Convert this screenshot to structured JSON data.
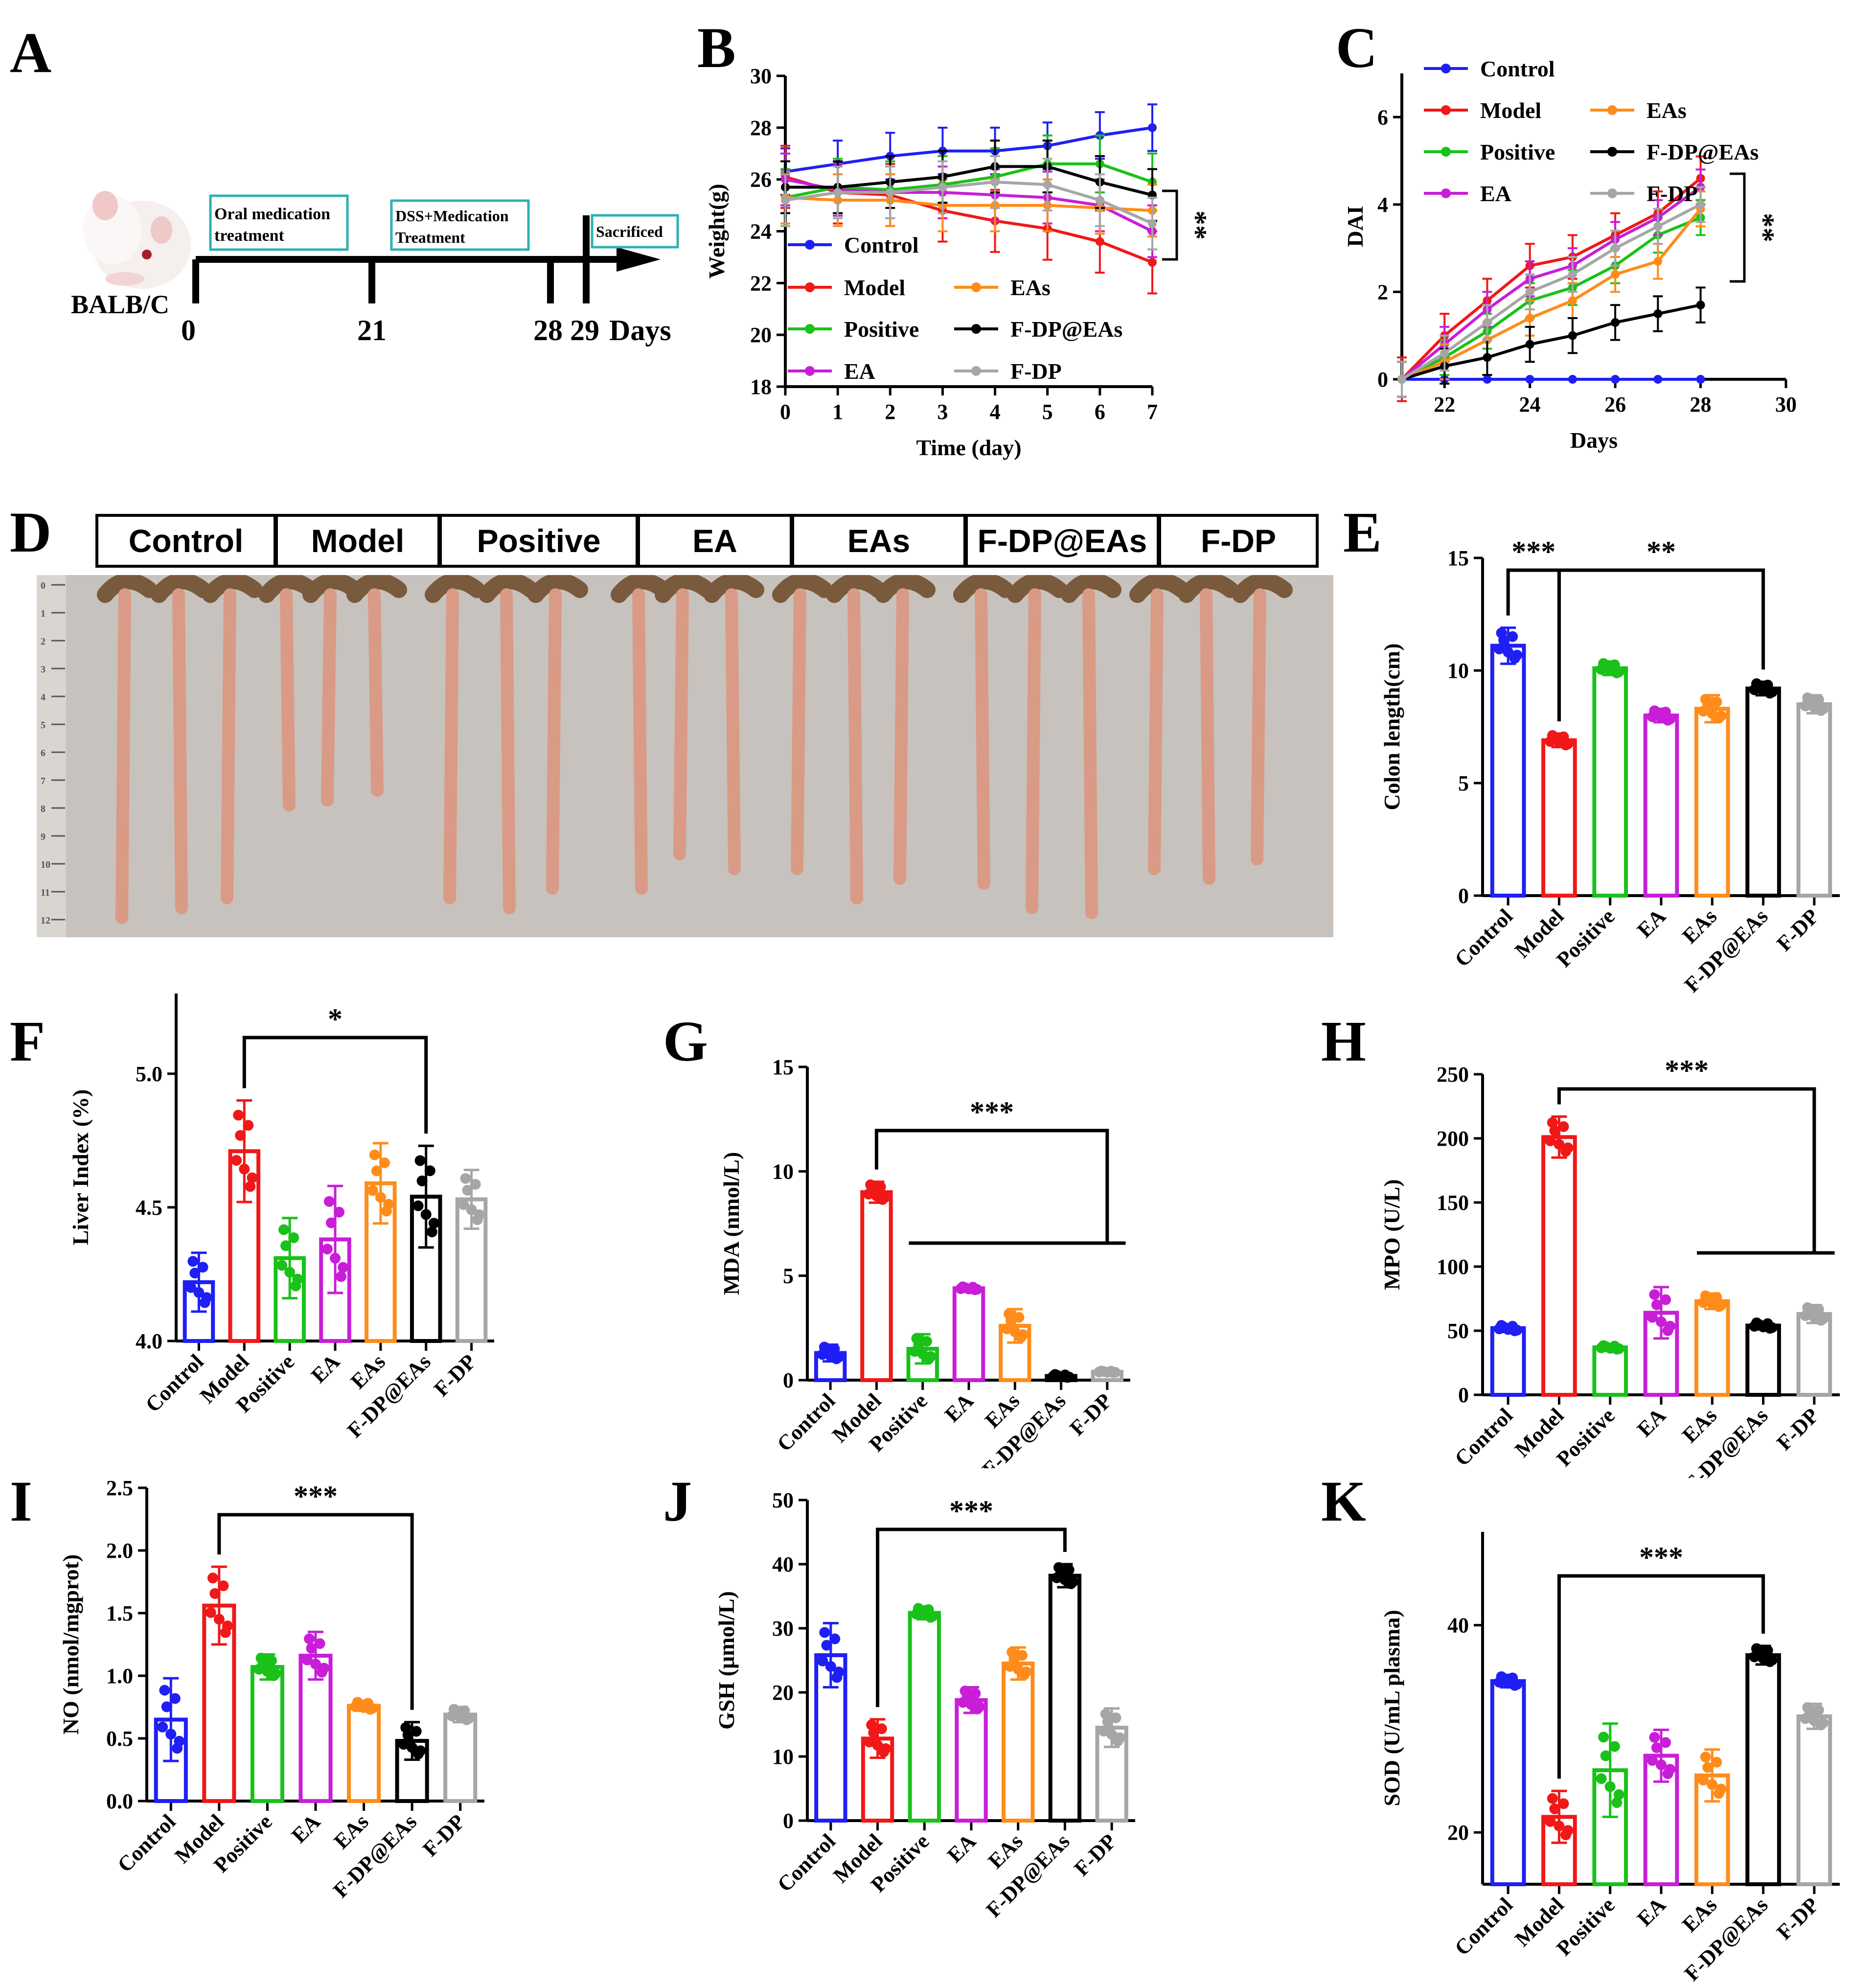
{
  "colors": {
    "Control": "#1f1ff5",
    "Model": "#f01818",
    "Positive": "#19c119",
    "EA": "#c81ed8",
    "EAs": "#ff8c1a",
    "F-DP@EAs": "#000000",
    "F-DP": "#a6a6a6"
  },
  "panels": {
    "A": {
      "letter": "A",
      "mouse_label": "BALB/C",
      "boxes": [
        "Oral medication treatment",
        "DSS+Medication Treatment",
        "Sacrificed"
      ],
      "oral_box": {
        "line1": "Oral medication",
        "line2": "treatment"
      },
      "dss_box": {
        "line1": "DSS+Medication",
        "line2": "Treatment"
      },
      "sacrificed": "Sacrificed",
      "ticks": [
        "0",
        "21",
        "28",
        "29"
      ],
      "days_label": "Days"
    },
    "B": {
      "letter": "B"
    },
    "C": {
      "letter": "C"
    },
    "D": {
      "letter": "D"
    },
    "E": {
      "letter": "E"
    },
    "F": {
      "letter": "F"
    },
    "G": {
      "letter": "G"
    },
    "H": {
      "letter": "H"
    },
    "I": {
      "letter": "I"
    },
    "J": {
      "letter": "J"
    },
    "K": {
      "letter": "K"
    }
  },
  "photo": {
    "groups": [
      "Control",
      "Model",
      "Positive",
      "EA",
      "EAs",
      "F-DP@EAs",
      "F-DP"
    ],
    "ruler_marks": [
      "0",
      "1",
      "2",
      "3",
      "4",
      "5",
      "6",
      "7",
      "8",
      "9",
      "10",
      "11",
      "12"
    ]
  },
  "chart_data": [
    {
      "id": "B",
      "type": "line",
      "xlabel": "Time (day)",
      "ylabel": "Weight(g)",
      "x": [
        0,
        1,
        2,
        3,
        4,
        5,
        6,
        7
      ],
      "xlim": [
        0,
        7
      ],
      "ylim": [
        18,
        30
      ],
      "xticks": [
        "0",
        "1",
        "2",
        "3",
        "4",
        "5",
        "6",
        "7"
      ],
      "yticks": [
        "18",
        "20",
        "22",
        "24",
        "26",
        "28",
        "30"
      ],
      "series": [
        {
          "name": "Control",
          "values": [
            26.3,
            26.6,
            26.9,
            27.1,
            27.1,
            27.3,
            27.7,
            28.0
          ],
          "err": 0.9
        },
        {
          "name": "Model",
          "values": [
            26.1,
            25.5,
            25.4,
            24.8,
            24.4,
            24.1,
            23.6,
            22.8
          ],
          "err": 1.2
        },
        {
          "name": "Positive",
          "values": [
            25.3,
            25.7,
            25.6,
            25.8,
            26.1,
            26.6,
            26.6,
            25.9
          ],
          "err": 1.1
        },
        {
          "name": "EA",
          "values": [
            26.0,
            25.6,
            25.5,
            25.5,
            25.4,
            25.3,
            25.0,
            24.0
          ],
          "err": 1.0
        },
        {
          "name": "EAs",
          "values": [
            25.3,
            25.2,
            25.2,
            25.0,
            25.0,
            25.0,
            24.9,
            24.8
          ],
          "err": 1.0
        },
        {
          "name": "F-DP@EAs",
          "values": [
            25.7,
            25.7,
            25.9,
            26.1,
            26.5,
            26.5,
            25.9,
            25.4
          ],
          "err": 1.0
        },
        {
          "name": "F-DP",
          "values": [
            25.2,
            25.5,
            25.5,
            25.7,
            25.9,
            25.8,
            25.2,
            24.3
          ],
          "err": 1.0
        }
      ],
      "legend": [
        "Control",
        "Model",
        "EAs",
        "Positive",
        "F-DP@EAs",
        "EA",
        "F-DP"
      ],
      "significance": "**"
    },
    {
      "id": "C",
      "type": "line",
      "xlabel": "Days",
      "ylabel": "DAI",
      "x": [
        21,
        22,
        23,
        24,
        25,
        26,
        27,
        28
      ],
      "xlim": [
        21,
        30
      ],
      "ylim": [
        0,
        7
      ],
      "xticks": [
        "22",
        "24",
        "26",
        "28",
        "30"
      ],
      "yticks": [
        "0",
        "2",
        "4",
        "6"
      ],
      "series": [
        {
          "name": "Control",
          "values": [
            0,
            0,
            0,
            0,
            0,
            0,
            0,
            0
          ],
          "err": 0
        },
        {
          "name": "Model",
          "values": [
            0,
            1.0,
            1.8,
            2.6,
            2.8,
            3.3,
            3.8,
            4.6
          ],
          "err": 0.5
        },
        {
          "name": "Positive",
          "values": [
            0,
            0.5,
            1.1,
            1.8,
            2.1,
            2.6,
            3.3,
            3.7
          ],
          "err": 0.4
        },
        {
          "name": "EA",
          "values": [
            0,
            0.8,
            1.6,
            2.3,
            2.6,
            3.2,
            3.7,
            4.4
          ],
          "err": 0.4
        },
        {
          "name": "EAs",
          "values": [
            0,
            0.4,
            0.9,
            1.4,
            1.8,
            2.4,
            2.7,
            3.9
          ],
          "err": 0.4
        },
        {
          "name": "F-DP@EAs",
          "values": [
            0,
            0.3,
            0.5,
            0.8,
            1.0,
            1.3,
            1.5,
            1.7
          ],
          "err": 0.4
        },
        {
          "name": "F-DP",
          "values": [
            0,
            0.6,
            1.3,
            2.0,
            2.4,
            3.0,
            3.5,
            4.0
          ],
          "err": 0.4
        }
      ],
      "legend": [
        "Control",
        "Model",
        "EAs",
        "Positive",
        "F-DP@EAs",
        "EA",
        "F-DP"
      ],
      "significance": "**"
    },
    {
      "id": "E",
      "type": "bar",
      "ylabel": "Colon length(cm)",
      "ylim": [
        0,
        15
      ],
      "yticks": [
        "0",
        "5",
        "10",
        "15"
      ],
      "categories": [
        "Control",
        "Model",
        "Positive",
        "EA",
        "EAs",
        "F-DP@EAs",
        "F-DP"
      ],
      "values": [
        11.1,
        6.9,
        10.1,
        8.0,
        8.3,
        9.2,
        8.5
      ],
      "err": [
        0.8,
        0.3,
        0.3,
        0.3,
        0.6,
        0.3,
        0.4
      ],
      "brackets": [
        {
          "from": 0,
          "to": 1,
          "label": "***"
        },
        {
          "from": 1,
          "to": 5,
          "label": "**"
        }
      ]
    },
    {
      "id": "F",
      "type": "bar",
      "ylabel": "Liver Index (%)",
      "ylim": [
        4.0,
        5.3
      ],
      "yticks": [
        "4.0",
        "4.5",
        "5.0"
      ],
      "categories": [
        "Control",
        "Model",
        "Positive",
        "EA",
        "EAs",
        "F-DP@EAs",
        "F-DP"
      ],
      "values": [
        4.22,
        4.71,
        4.31,
        4.38,
        4.59,
        4.54,
        4.53
      ],
      "err": [
        0.11,
        0.19,
        0.15,
        0.2,
        0.15,
        0.19,
        0.11
      ],
      "brackets": [
        {
          "from": 1,
          "to": 5,
          "label": "*"
        }
      ]
    },
    {
      "id": "G",
      "type": "bar",
      "ylabel": "MDA (nmol/L)",
      "ylim": [
        0,
        15
      ],
      "yticks": [
        "0",
        "5",
        "10",
        "15"
      ],
      "categories": [
        "Control",
        "Model",
        "Positive",
        "EA",
        "EAs",
        "F-DP@EAs",
        "F-DP"
      ],
      "values": [
        1.3,
        9.0,
        1.5,
        4.4,
        2.6,
        0.2,
        0.4
      ],
      "err": [
        0.4,
        0.5,
        0.7,
        0.1,
        0.8,
        0.1,
        0.05
      ],
      "brackets": [
        {
          "from": 1,
          "to": 6,
          "label": "***",
          "group_from": 2
        }
      ]
    },
    {
      "id": "H",
      "type": "bar",
      "ylabel": "MPO (U/L)",
      "ylim": [
        0,
        250
      ],
      "yticks": [
        "0",
        "50",
        "100",
        "150",
        "200",
        "250"
      ],
      "categories": [
        "Control",
        "Model",
        "Positive",
        "EA",
        "EAs",
        "F-DP@EAs",
        "F-DP"
      ],
      "values": [
        52,
        201,
        37,
        64,
        73,
        54,
        63
      ],
      "err": [
        3,
        16,
        2,
        20,
        6,
        3,
        7
      ],
      "brackets": [
        {
          "from": 1,
          "to": 6,
          "label": "***",
          "group_from": 4
        }
      ]
    },
    {
      "id": "I",
      "type": "bar",
      "ylabel": "NO (nmol/mgprot)",
      "ylim": [
        0,
        2.5
      ],
      "yticks": [
        "0.0",
        "0.5",
        "1.0",
        "1.5",
        "2.0",
        "2.5"
      ],
      "categories": [
        "Control",
        "Model",
        "Positive",
        "EA",
        "EAs",
        "F-DP@EAs",
        "F-DP"
      ],
      "values": [
        0.65,
        1.56,
        1.07,
        1.16,
        0.76,
        0.48,
        0.69
      ],
      "err": [
        0.33,
        0.31,
        0.1,
        0.19,
        0.04,
        0.15,
        0.06
      ],
      "brackets": [
        {
          "from": 1,
          "to": 5,
          "label": "***"
        }
      ]
    },
    {
      "id": "J",
      "type": "bar",
      "ylabel": "GSH (μmol/L)",
      "ylim": [
        0,
        50
      ],
      "yticks": [
        "0",
        "10",
        "20",
        "30",
        "40",
        "50"
      ],
      "categories": [
        "Control",
        "Model",
        "Positive",
        "EA",
        "EAs",
        "F-DP@EAs",
        "F-DP"
      ],
      "values": [
        25.8,
        12.8,
        32.4,
        18.8,
        24.5,
        38.2,
        14.5
      ],
      "err": [
        5,
        3,
        1,
        2,
        2.5,
        1.8,
        3
      ],
      "brackets": [
        {
          "from": 1,
          "to": 5,
          "label": "***"
        }
      ]
    },
    {
      "id": "K",
      "type": "bar",
      "ylabel": "SOD (U/mL plasma)",
      "ylim": [
        15,
        49
      ],
      "yticks": [
        "20",
        "40"
      ],
      "categories": [
        "Control",
        "Model",
        "Positive",
        "EA",
        "EAs",
        "F-DP@EAs",
        "F-DP"
      ],
      "values": [
        34.6,
        21.5,
        26.0,
        27.4,
        25.5,
        37.1,
        31.2
      ],
      "err": [
        0.6,
        2.5,
        4.5,
        2.5,
        2.5,
        0.9,
        1.2
      ],
      "brackets": [
        {
          "from": 1,
          "to": 5,
          "label": "***"
        }
      ]
    }
  ]
}
